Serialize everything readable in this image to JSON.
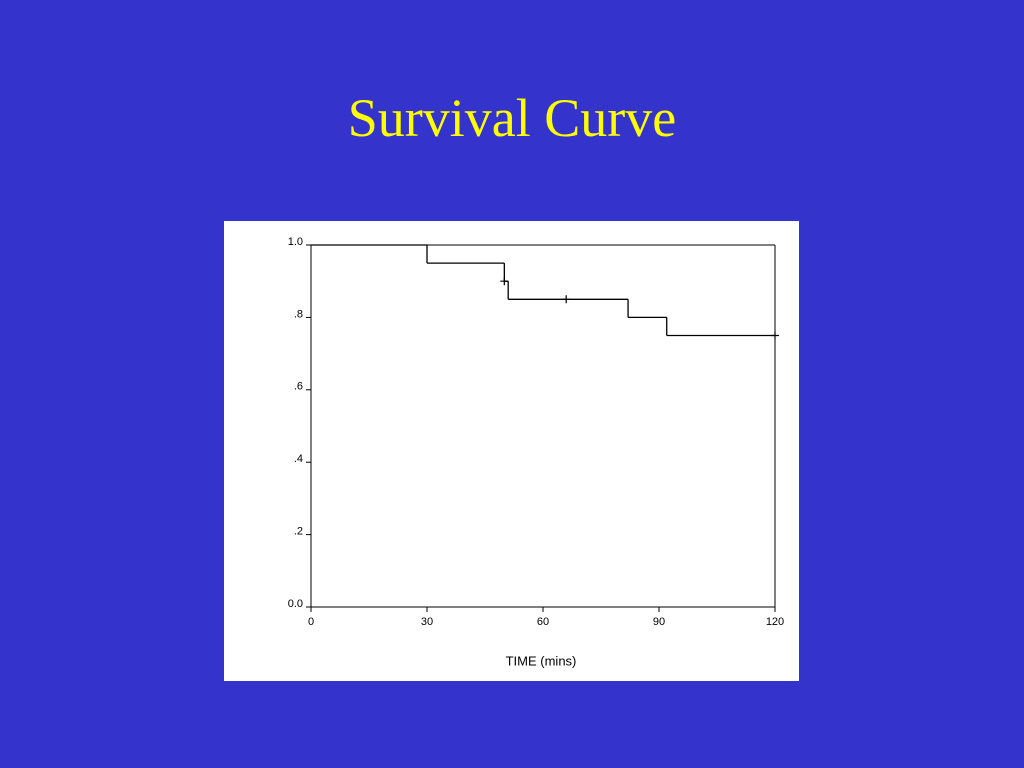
{
  "chart_data": {
    "type": "step",
    "title": "Survival Curve",
    "x_label": "TIME (mins)",
    "series": [
      {
        "x": [
          0,
          30,
          50,
          51,
          82,
          92,
          120
        ],
        "values": [
          1.0,
          0.95,
          0.9,
          0.85,
          0.8,
          0.75,
          0.75
        ],
        "color": "#000000"
      }
    ],
    "censored": {
      "x": [
        50,
        66,
        120
      ],
      "values": [
        0.9,
        0.85,
        0.75
      ]
    },
    "xlim": [
      0,
      120
    ],
    "xticks": [
      0,
      30,
      60,
      90,
      120
    ],
    "ylim": [
      0,
      1
    ],
    "yticks": [
      {
        "value": 0,
        "label": "0.0"
      },
      {
        "value": 0.2,
        "label": ".2"
      },
      {
        "value": 0.4,
        "label": ".4"
      },
      {
        "value": 0.6,
        "label": ".6"
      },
      {
        "value": 0.8,
        "label": ".8"
      },
      {
        "value": 1.0,
        "label": "1.0"
      }
    ]
  }
}
